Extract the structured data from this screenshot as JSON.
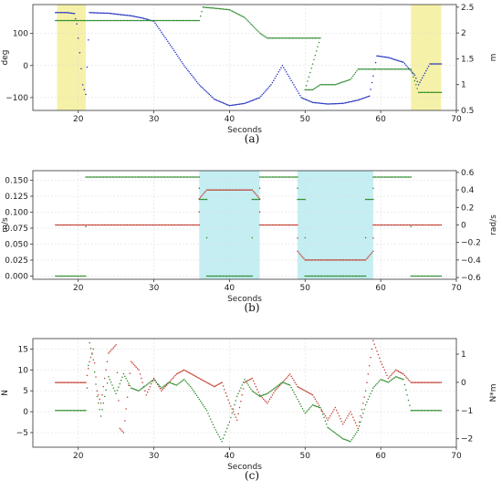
{
  "chart_data": [
    {
      "panel": "a",
      "type": "scatter",
      "caption": "(a)",
      "xlabel": "Seconds",
      "ylabel_left": "deg",
      "ylabel_right": "m",
      "xlim": [
        14,
        70
      ],
      "ylim_left": [
        -140,
        190
      ],
      "ylim_right": [
        0.5,
        2.55
      ],
      "x_ticks": [
        20,
        30,
        40,
        50,
        60,
        70
      ],
      "y_ticks_left": [
        100,
        0,
        -100
      ],
      "y_ticks_right": [
        2.5,
        2.0,
        1.5,
        1.0,
        0.5
      ],
      "grid": true,
      "shaded_regions": [
        {
          "x": [
            17.2,
            21.0
          ],
          "color": "#f6f1a8"
        },
        {
          "x": [
            64.0,
            68.0
          ],
          "color": "#f6f1a8"
        }
      ],
      "series": [
        {
          "axis": "left",
          "color": "#1f2fbf",
          "points": [
            [
              17,
              165
            ],
            [
              18.5,
              165
            ],
            [
              19.5,
              162
            ],
            [
              19.8,
              130
            ],
            [
              20.2,
              40
            ],
            [
              20.6,
              -60
            ],
            [
              21,
              -90
            ],
            [
              21.5,
              165
            ],
            [
              24,
              163
            ],
            [
              27,
              155
            ],
            [
              28.5,
              148
            ],
            [
              30,
              138
            ],
            [
              32,
              70
            ],
            [
              34,
              0
            ],
            [
              36,
              -60
            ],
            [
              38,
              -105
            ],
            [
              40,
              -125
            ],
            [
              42,
              -118
            ],
            [
              44,
              -100
            ],
            [
              45.5,
              -60
            ],
            [
              46.5,
              -20
            ],
            [
              47,
              0
            ],
            [
              48,
              -40
            ],
            [
              49.5,
              -100
            ],
            [
              51,
              -115
            ],
            [
              53,
              -120
            ],
            [
              55,
              -118
            ],
            [
              57,
              -108
            ],
            [
              58.5,
              -95
            ],
            [
              59.5,
              30
            ],
            [
              61,
              25
            ],
            [
              63,
              10
            ],
            [
              64.5,
              -30
            ],
            [
              65,
              -60
            ],
            [
              66.5,
              5
            ],
            [
              68,
              5
            ]
          ]
        },
        {
          "axis": "right",
          "color": "#2a8a2a",
          "points": [
            [
              17,
              2.24
            ],
            [
              20,
              2.24
            ],
            [
              25,
              2.24
            ],
            [
              30,
              2.24
            ],
            [
              36,
              2.24
            ],
            [
              36.5,
              2.5
            ],
            [
              38,
              2.48
            ],
            [
              40,
              2.45
            ],
            [
              42,
              2.3
            ],
            [
              44,
              2.0
            ],
            [
              45,
              1.9
            ],
            [
              47,
              1.9
            ],
            [
              51,
              1.9
            ],
            [
              52,
              1.9
            ],
            [
              50,
              0.9
            ],
            [
              51,
              0.9
            ],
            [
              52,
              1.0
            ],
            [
              54,
              1.0
            ],
            [
              56,
              1.1
            ],
            [
              57,
              1.3
            ],
            [
              59,
              1.3
            ],
            [
              62,
              1.3
            ],
            [
              64,
              1.3
            ],
            [
              65,
              0.85
            ],
            [
              68,
              0.85
            ]
          ]
        }
      ]
    },
    {
      "panel": "b",
      "type": "scatter",
      "caption": "(b)",
      "xlabel": "Seconds",
      "ylabel_left": "m/s",
      "ylabel_right": "rad/s",
      "xlim": [
        14,
        70
      ],
      "ylim_left": [
        -0.005,
        0.165
      ],
      "ylim_right": [
        -0.62,
        0.62
      ],
      "x_ticks": [
        20,
        30,
        40,
        50,
        60,
        70
      ],
      "y_ticks_left": [
        0.15,
        0.125,
        0.1,
        0.075,
        0.05,
        0.025,
        0.0
      ],
      "y_ticks_right": [
        0.6,
        0.4,
        0.2,
        0.0,
        -0.2,
        -0.4,
        -0.6
      ],
      "grid": true,
      "shaded_regions": [
        {
          "x": [
            36.0,
            44.0
          ],
          "color": "#c4eef2"
        },
        {
          "x": [
            49.0,
            59.0
          ],
          "color": "#c4eef2"
        }
      ],
      "series": [
        {
          "axis": "left",
          "color": "#2a8a2a",
          "points": [
            [
              17,
              0.0
            ],
            [
              21,
              0.0
            ],
            [
              21,
              0.155
            ],
            [
              36,
              0.155
            ],
            [
              36,
              0.12
            ],
            [
              37,
              0.12
            ],
            [
              37,
              0.0
            ],
            [
              43,
              0.0
            ],
            [
              43,
              0.12
            ],
            [
              44,
              0.12
            ],
            [
              44,
              0.155
            ],
            [
              49,
              0.155
            ],
            [
              49,
              0.12
            ],
            [
              50,
              0.12
            ],
            [
              50,
              0.0
            ],
            [
              58,
              0.0
            ],
            [
              58,
              0.12
            ],
            [
              59,
              0.12
            ],
            [
              59,
              0.155
            ],
            [
              64,
              0.155
            ],
            [
              64,
              0.0
            ],
            [
              68,
              0.0
            ]
          ]
        },
        {
          "axis": "right",
          "color": "#c0392b",
          "points": [
            [
              17,
              0.0
            ],
            [
              36,
              0.0
            ],
            [
              36,
              0.3
            ],
            [
              37,
              0.4
            ],
            [
              43,
              0.4
            ],
            [
              44,
              0.3
            ],
            [
              44,
              0.0
            ],
            [
              49,
              0.0
            ],
            [
              49,
              -0.3
            ],
            [
              50,
              -0.4
            ],
            [
              58,
              -0.4
            ],
            [
              59,
              -0.3
            ],
            [
              59,
              0.0
            ],
            [
              68,
              0.0
            ]
          ]
        }
      ]
    },
    {
      "panel": "c",
      "type": "line",
      "caption": "(c)",
      "xlabel": "Seconds",
      "ylabel_left": "N",
      "ylabel_right": "N*m",
      "xlim": [
        14,
        70
      ],
      "ylim_left": [
        -8.5,
        17.5
      ],
      "ylim_right": [
        -2.3,
        1.55
      ],
      "x_ticks": [
        20,
        30,
        40,
        50,
        60,
        70
      ],
      "y_ticks_left": [
        15,
        10,
        5,
        0,
        -5
      ],
      "y_ticks_right": [
        1,
        0,
        -1,
        -2
      ],
      "grid": true,
      "shaded_regions": [],
      "series": [
        {
          "axis": "left",
          "color": "#c0392b",
          "points": [
            [
              17,
              7
            ],
            [
              21,
              7
            ],
            [
              21.5,
              12
            ],
            [
              22,
              15
            ],
            [
              22.5,
              5
            ],
            [
              23,
              2
            ],
            [
              24,
              14
            ],
            [
              25,
              16
            ],
            [
              25.5,
              -4
            ],
            [
              26,
              -5
            ],
            [
              27,
              12
            ],
            [
              28,
              10
            ],
            [
              29,
              4
            ],
            [
              30,
              8
            ],
            [
              31,
              5
            ],
            [
              32,
              7
            ],
            [
              33,
              9
            ],
            [
              34,
              10
            ],
            [
              35,
              9
            ],
            [
              36,
              8
            ],
            [
              37,
              7
            ],
            [
              38,
              6
            ],
            [
              39,
              7
            ],
            [
              40,
              2
            ],
            [
              41,
              -2
            ],
            [
              42,
              7
            ],
            [
              43,
              8
            ],
            [
              44,
              4
            ],
            [
              45,
              2
            ],
            [
              46,
              5
            ],
            [
              47,
              7
            ],
            [
              48,
              9
            ],
            [
              49,
              6
            ],
            [
              50,
              5
            ],
            [
              51,
              4
            ],
            [
              52,
              1
            ],
            [
              53,
              -2
            ],
            [
              54,
              1
            ],
            [
              55,
              -3
            ],
            [
              56,
              0
            ],
            [
              57,
              -4
            ],
            [
              58,
              5
            ],
            [
              59,
              17
            ],
            [
              60,
              12
            ],
            [
              61,
              8
            ],
            [
              62,
              10
            ],
            [
              63,
              9
            ],
            [
              64,
              7
            ],
            [
              68,
              7
            ]
          ]
        },
        {
          "axis": "right",
          "color": "#2a8a2a",
          "points": [
            [
              17,
              -1
            ],
            [
              21,
              -1
            ],
            [
              21.5,
              1.4
            ],
            [
              22,
              0.8
            ],
            [
              22.5,
              -0.5
            ],
            [
              23,
              -1.2
            ],
            [
              24,
              0.2
            ],
            [
              25,
              -0.4
            ],
            [
              26,
              0.3
            ],
            [
              27,
              -0.2
            ],
            [
              28,
              -0.3
            ],
            [
              29,
              -0.1
            ],
            [
              30,
              0.1
            ],
            [
              31,
              -0.2
            ],
            [
              32,
              0.0
            ],
            [
              33,
              -0.1
            ],
            [
              34,
              0.1
            ],
            [
              35,
              -0.2
            ],
            [
              36,
              -0.6
            ],
            [
              37,
              -1.0
            ],
            [
              38,
              -1.6
            ],
            [
              39,
              -2.1
            ],
            [
              40,
              -1.4
            ],
            [
              41,
              -0.5
            ],
            [
              42,
              0.1
            ],
            [
              43,
              -0.3
            ],
            [
              44,
              -0.5
            ],
            [
              45,
              -0.4
            ],
            [
              46,
              -0.2
            ],
            [
              47,
              0.0
            ],
            [
              48,
              -0.1
            ],
            [
              49,
              -0.6
            ],
            [
              50,
              -1.1
            ],
            [
              51,
              -0.8
            ],
            [
              52,
              -0.9
            ],
            [
              53,
              -1.6
            ],
            [
              54,
              -1.8
            ],
            [
              55,
              -2.0
            ],
            [
              56,
              -2.1
            ],
            [
              57,
              -1.7
            ],
            [
              58,
              -0.8
            ],
            [
              59,
              -0.2
            ],
            [
              60,
              0.1
            ],
            [
              61,
              0.0
            ],
            [
              62,
              0.2
            ],
            [
              63,
              0.1
            ],
            [
              64,
              -1
            ],
            [
              68,
              -1
            ]
          ]
        }
      ]
    }
  ]
}
